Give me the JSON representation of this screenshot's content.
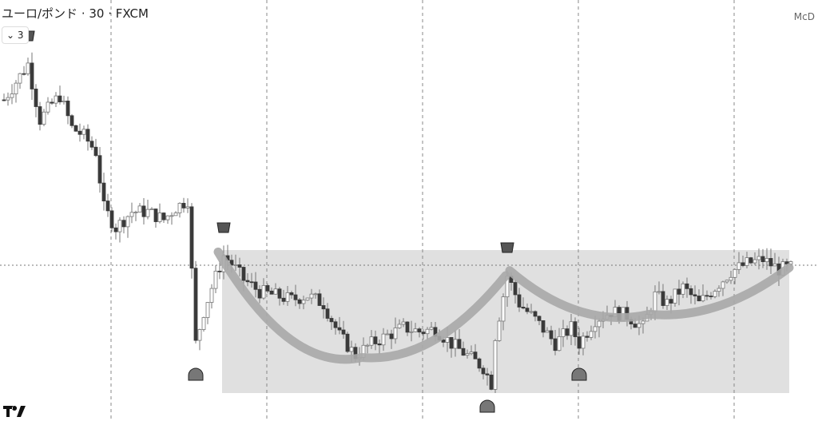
{
  "header": {
    "title": "ユーロ/ポンド · 30 · FXCM",
    "indicator_toggle": "3",
    "right_label": "McD"
  },
  "colors": {
    "up_body": "#ffffff",
    "down_body": "#3a3a3a",
    "wick": "#777777",
    "range_box": "#e0e0e0",
    "arc": "#a8a8a8",
    "grid": "#888888"
  },
  "chart_data": {
    "type": "candlestick",
    "title": "ユーロ/ポンド · 30 · FXCM",
    "grid": "vertical dashed",
    "price_line": "dotted horizontal",
    "close_path": [
      {
        "bar": 0,
        "close": 402
      },
      {
        "bar": 4,
        "close": 432
      },
      {
        "bar": 6,
        "close": 447
      },
      {
        "bar": 9,
        "close": 377
      },
      {
        "bar": 12,
        "close": 397
      },
      {
        "bar": 14,
        "close": 407
      },
      {
        "bar": 17,
        "close": 367
      },
      {
        "bar": 20,
        "close": 357
      },
      {
        "bar": 23,
        "close": 337
      },
      {
        "bar": 25,
        "close": 267
      },
      {
        "bar": 28,
        "close": 242
      },
      {
        "bar": 32,
        "close": 262
      },
      {
        "bar": 36,
        "close": 262
      },
      {
        "bar": 40,
        "close": 252
      },
      {
        "bar": 43,
        "close": 267
      },
      {
        "bar": 46,
        "close": 277
      },
      {
        "bar": 47,
        "close": 187
      },
      {
        "bar": 48,
        "close": 97
      },
      {
        "bar": 50,
        "close": 137
      },
      {
        "bar": 52,
        "close": 167
      },
      {
        "bar": 55,
        "close": 207
      },
      {
        "bar": 57,
        "close": 197
      },
      {
        "bar": 60,
        "close": 177
      },
      {
        "bar": 64,
        "close": 162
      },
      {
        "bar": 68,
        "close": 157
      },
      {
        "bar": 72,
        "close": 152
      },
      {
        "bar": 76,
        "close": 157
      },
      {
        "bar": 80,
        "close": 147
      },
      {
        "bar": 84,
        "close": 107
      },
      {
        "bar": 88,
        "close": 82
      },
      {
        "bar": 92,
        "close": 97
      },
      {
        "bar": 96,
        "close": 107
      },
      {
        "bar": 100,
        "close": 117
      },
      {
        "bar": 104,
        "close": 112
      },
      {
        "bar": 108,
        "close": 115
      },
      {
        "bar": 112,
        "close": 97
      },
      {
        "bar": 116,
        "close": 82
      },
      {
        "bar": 120,
        "close": 67
      },
      {
        "bar": 122,
        "close": 47
      },
      {
        "bar": 123,
        "close": 107
      },
      {
        "bar": 125,
        "close": 157
      },
      {
        "bar": 126,
        "close": 182
      },
      {
        "bar": 129,
        "close": 147
      },
      {
        "bar": 133,
        "close": 127
      },
      {
        "bar": 138,
        "close": 97
      },
      {
        "bar": 142,
        "close": 117
      },
      {
        "bar": 144,
        "close": 97
      },
      {
        "bar": 148,
        "close": 127
      },
      {
        "bar": 152,
        "close": 137
      },
      {
        "bar": 156,
        "close": 132
      },
      {
        "bar": 160,
        "close": 117
      },
      {
        "bar": 163,
        "close": 157
      },
      {
        "bar": 166,
        "close": 147
      },
      {
        "bar": 170,
        "close": 167
      },
      {
        "bar": 174,
        "close": 147
      },
      {
        "bar": 178,
        "close": 167
      },
      {
        "bar": 182,
        "close": 187
      },
      {
        "bar": 186,
        "close": 197
      },
      {
        "bar": 190,
        "close": 202
      },
      {
        "bar": 194,
        "close": 190
      },
      {
        "bar": 197,
        "close": 192
      }
    ],
    "range_box": {
      "from_bar": 55,
      "to_bar": 197,
      "high": 214,
      "low": 35
    },
    "arcs": [
      {
        "from_bar": 54,
        "bottom_bar": 90,
        "to_bar": 126
      },
      {
        "from_bar": 127,
        "bottom_bar": 162,
        "to_bar": 197
      }
    ],
    "markers": [
      {
        "type": "top",
        "bar": 6,
        "icon": "crown-icon"
      },
      {
        "type": "top",
        "bar": 55,
        "icon": "crown-icon"
      },
      {
        "type": "top",
        "bar": 126,
        "icon": "crown-icon"
      },
      {
        "type": "bottom",
        "bar": 48,
        "icon": "helmet-icon"
      },
      {
        "type": "bottom",
        "bar": 121,
        "icon": "helmet-icon"
      },
      {
        "type": "bottom",
        "bar": 144,
        "icon": "helmet-icon"
      }
    ],
    "price_line_level": 195,
    "vertical_grid_bars": [
      27,
      66,
      105,
      144,
      183
    ]
  }
}
